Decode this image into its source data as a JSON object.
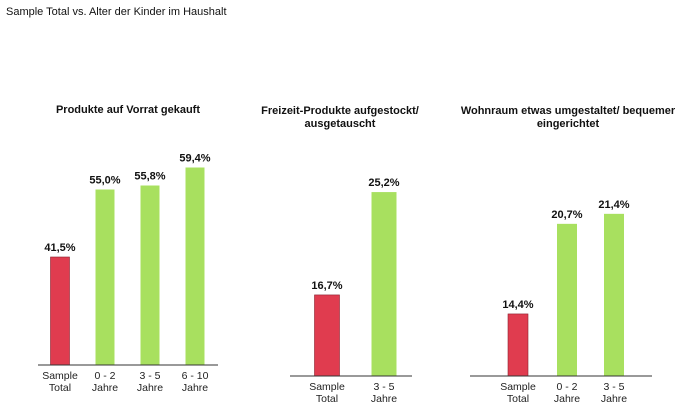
{
  "header": "Sample Total vs. Alter der Kinder im Haushalt",
  "colors": {
    "sample_total": "#e03c4f",
    "age_group": "#a8e05f"
  },
  "chart_data": [
    {
      "type": "bar",
      "title": "Produkte auf Vorrat gekauft",
      "categories": [
        [
          "Sample",
          "Total"
        ],
        [
          "0 - 2",
          "Jahre"
        ],
        [
          "3 - 5",
          "Jahre"
        ],
        [
          "6 - 10",
          "Jahre"
        ]
      ],
      "values": [
        41.5,
        55.0,
        55.8,
        59.4
      ],
      "data_labels": [
        "41,5%",
        "55,0%",
        "55,8%",
        "59,4%"
      ]
    },
    {
      "type": "bar",
      "title": "Freizeit-Produkte aufgestockt/ ausgetauscht",
      "categories": [
        [
          "Sample",
          "Total"
        ],
        [
          "3 - 5",
          "Jahre"
        ]
      ],
      "values": [
        16.7,
        25.2
      ],
      "data_labels": [
        "16,7%",
        "25,2%"
      ]
    },
    {
      "type": "bar",
      "title": "Wohnraum etwas umgestaltet/ bequemer eingerichtet",
      "categories": [
        [
          "Sample",
          "Total"
        ],
        [
          "0 - 2",
          "Jahre"
        ],
        [
          "3 - 5",
          "Jahre"
        ]
      ],
      "values": [
        14.4,
        20.7,
        21.4
      ],
      "data_labels": [
        "14,4%",
        "20,7%",
        "21,4%"
      ]
    }
  ]
}
